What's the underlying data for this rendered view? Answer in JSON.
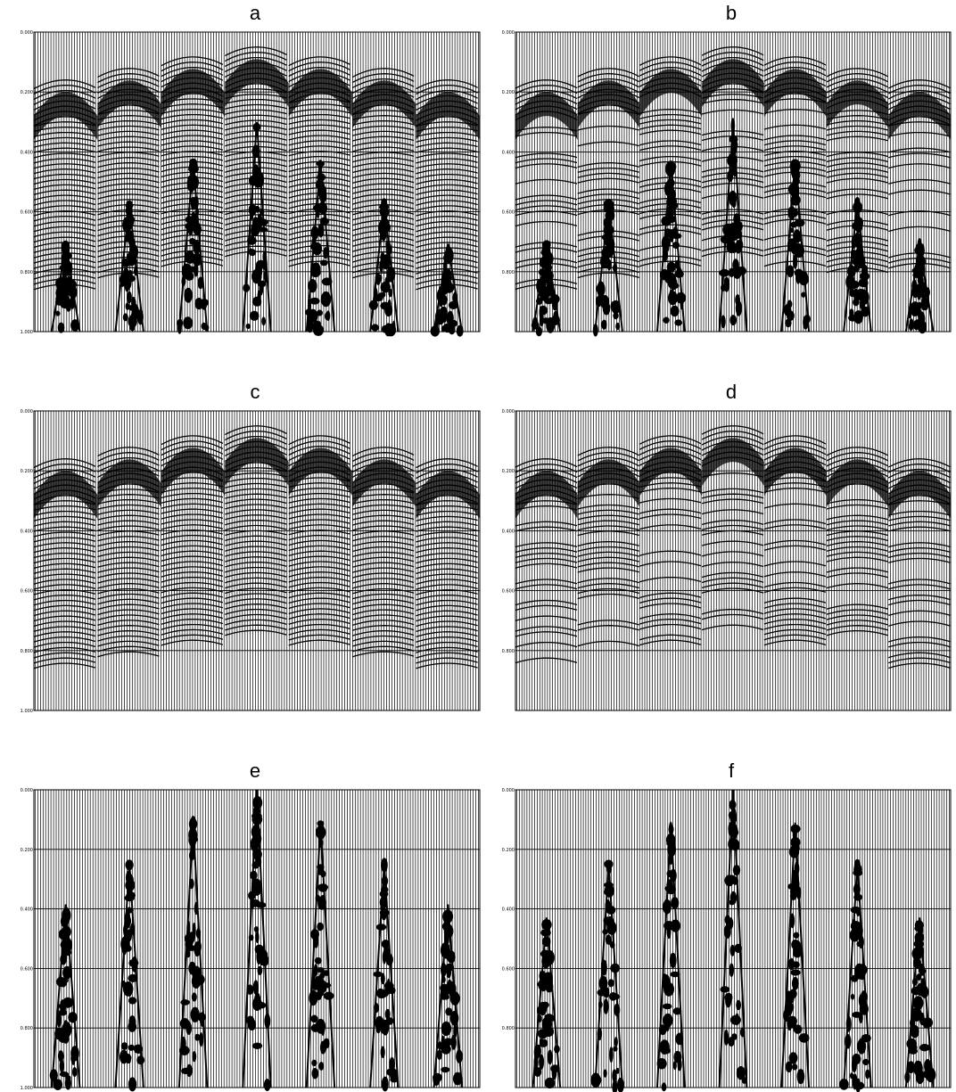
{
  "figure": {
    "panels": [
      {
        "id": "a",
        "label": "a",
        "type": "raw_shot_gathers_with_noise",
        "tick_labels": [
          "0.000",
          "0.200",
          "0.400",
          "0.600",
          "0.800",
          "1.000"
        ]
      },
      {
        "id": "b",
        "label": "b",
        "type": "processed_gathers_with_noise",
        "tick_labels": [
          "0.000",
          "0.200",
          "0.400",
          "0.600",
          "0.800"
        ]
      },
      {
        "id": "c",
        "label": "c",
        "type": "raw_shot_gathers_denoised",
        "tick_labels": [
          "0.000",
          "0.200",
          "0.400",
          "0.600",
          "0.800",
          "1.000"
        ]
      },
      {
        "id": "d",
        "label": "d",
        "type": "processed_gathers_denoised",
        "tick_labels": [
          "0.000",
          "0.200",
          "0.400",
          "0.600",
          "0.800"
        ]
      },
      {
        "id": "e",
        "label": "e",
        "type": "removed_noise",
        "tick_labels": [
          "0.000",
          "0.200",
          "0.400",
          "0.600",
          "0.800",
          "1.000"
        ]
      },
      {
        "id": "f",
        "label": "f",
        "type": "removed_noise_processed",
        "tick_labels": [
          "0.000",
          "0.200",
          "0.400",
          "0.600",
          "0.800"
        ]
      }
    ],
    "colors": {
      "background": "#ffffff",
      "trace": "#000000",
      "grid": "#000000"
    }
  }
}
